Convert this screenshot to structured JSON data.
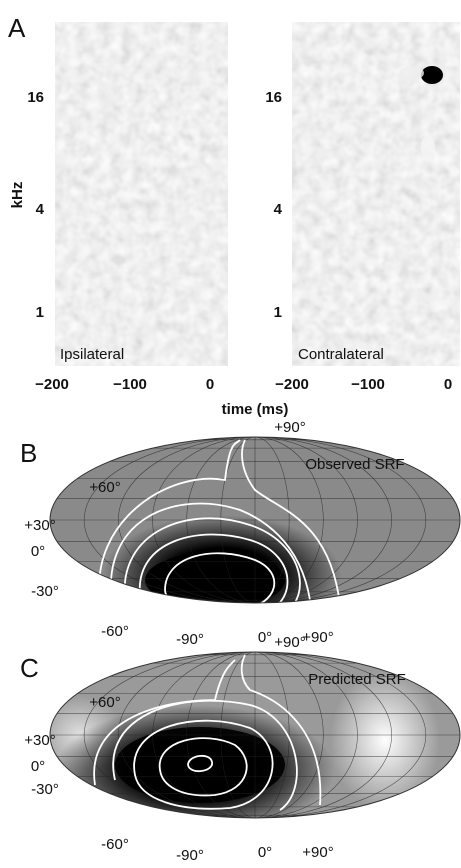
{
  "panel_a": {
    "label": "A",
    "y_axis_label": "kHz",
    "x_axis_label": "time (ms)",
    "left": {
      "title": "Ipsilateral",
      "y_ticks": [
        "16",
        "4",
        "1"
      ],
      "x_ticks": [
        "−200",
        "−100",
        "0"
      ]
    },
    "right": {
      "title": "Contralateral",
      "y_ticks": [
        "16",
        "4",
        "1"
      ],
      "x_ticks": [
        "−200",
        "−100",
        "0"
      ]
    }
  },
  "panel_b": {
    "label": "B",
    "title": "Observed SRF",
    "elevation_labels": [
      "+90°",
      "+60°",
      "+30°",
      "0°",
      "-30°",
      "-60°"
    ],
    "azimuth_labels": [
      "-90°",
      "0°",
      "+90°"
    ]
  },
  "panel_c": {
    "label": "C",
    "title": "Predicted SRF",
    "elevation_labels": [
      "+90°",
      "+60°",
      "+30°",
      "0°",
      "-30°",
      "-60°"
    ],
    "azimuth_labels": [
      "-90°",
      "0°",
      "+90°"
    ]
  }
}
